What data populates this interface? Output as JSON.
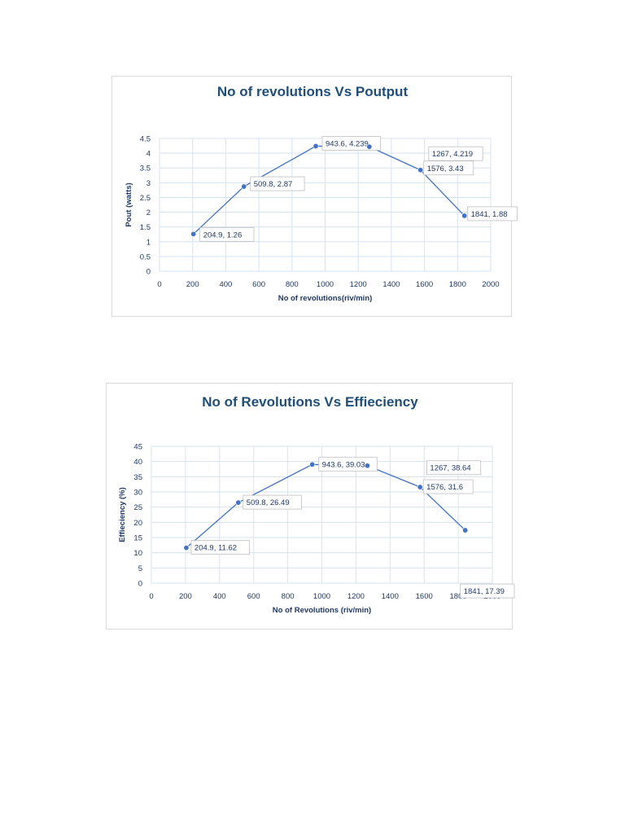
{
  "colors": {
    "series_line": "#4472c4",
    "marker": "#4472c4",
    "title": "#1f4e79",
    "grid": "#d6e3f3"
  },
  "chart_data": [
    {
      "type": "line",
      "title": "No of revolutions Vs Poutput",
      "xlabel": "No of revolutions(riv/min)",
      "ylabel": "Pout (watts)",
      "xlim": [
        0,
        2000
      ],
      "ylim": [
        0,
        4.5
      ],
      "x_ticks": [
        "0",
        "200",
        "400",
        "600",
        "800",
        "1000",
        "1200",
        "1400",
        "1600",
        "1800",
        "2000"
      ],
      "y_ticks": [
        "0",
        "0.5",
        "1",
        "1.5",
        "2",
        "2.5",
        "3",
        "3.5",
        "4",
        "4.5"
      ],
      "grid": true,
      "x": [
        204.9,
        509.8,
        943.6,
        1267,
        1576,
        1841
      ],
      "y": [
        1.26,
        2.87,
        4.239,
        4.219,
        3.43,
        1.88
      ],
      "data_labels": [
        "204.9, 1.26",
        "509.8, 2.87",
        "943.6, 4.239",
        "1267, 4.219",
        "1576, 3.43",
        "1841, 1.88"
      ]
    },
    {
      "type": "line",
      "title": "No of Revolutions Vs Effieciency",
      "xlabel": "No of Revolutions (riv/min)",
      "ylabel": "Effieciency (%)",
      "xlim": [
        0,
        2000
      ],
      "ylim": [
        0,
        45
      ],
      "x_ticks": [
        "0",
        "200",
        "400",
        "600",
        "800",
        "1000",
        "1200",
        "1400",
        "1600",
        "1800",
        "2000"
      ],
      "y_ticks": [
        "0",
        "5",
        "10",
        "15",
        "20",
        "25",
        "30",
        "35",
        "40",
        "45"
      ],
      "grid": true,
      "x": [
        204.9,
        509.8,
        943.6,
        1267,
        1576,
        1841
      ],
      "y": [
        11.62,
        26.49,
        39.03,
        38.64,
        31.6,
        17.39
      ],
      "data_labels": [
        "204.9, 11.62",
        "509.8, 26.49",
        "943.6, 39.03",
        "1267, 38.64",
        "1576, 31.6",
        "1841, 17.39"
      ]
    }
  ]
}
